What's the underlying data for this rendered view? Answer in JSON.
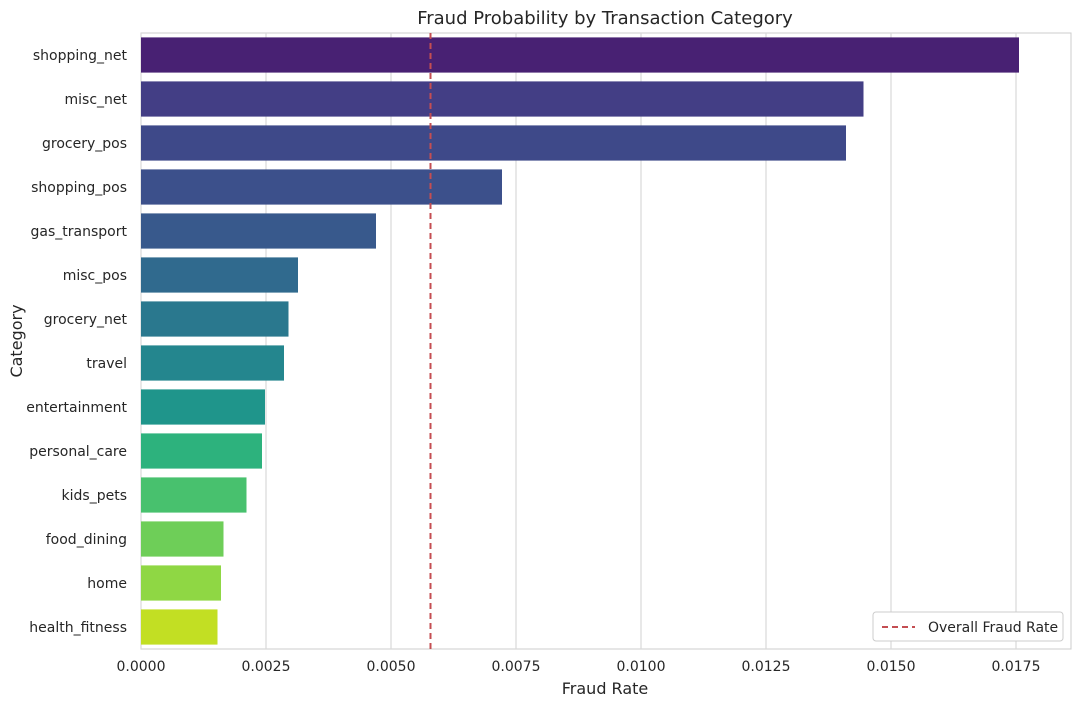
{
  "chart_data": {
    "type": "bar",
    "orientation": "horizontal",
    "title": "Fraud Probability by Transaction Category",
    "xlabel": "Fraud Rate",
    "ylabel": "Category",
    "xlim": [
      0,
      0.0186
    ],
    "xticks": [
      "0.0000",
      "0.0025",
      "0.0050",
      "0.0075",
      "0.0100",
      "0.0125",
      "0.0150",
      "0.0175"
    ],
    "xtick_values": [
      0,
      0.0025,
      0.005,
      0.0075,
      0.01,
      0.0125,
      0.015,
      0.0175
    ],
    "grid": "vertical",
    "categories": [
      "shopping_net",
      "misc_net",
      "grocery_pos",
      "shopping_pos",
      "gas_transport",
      "misc_pos",
      "grocery_net",
      "travel",
      "entertainment",
      "personal_care",
      "kids_pets",
      "food_dining",
      "home",
      "health_fitness"
    ],
    "values": [
      0.01756,
      0.01445,
      0.0141,
      0.00722,
      0.0047,
      0.00314,
      0.00295,
      0.00286,
      0.00248,
      0.00242,
      0.00211,
      0.00165,
      0.0016,
      0.00153
    ],
    "colors": [
      "#482173",
      "#433e85",
      "#3e4989",
      "#3c508b",
      "#38598c",
      "#306a8e",
      "#2a788e",
      "#24868e",
      "#1f958b",
      "#2db27d",
      "#48c16e",
      "#6ece58",
      "#8fd744",
      "#c2df23"
    ],
    "reference_line": {
      "label": "Overall Fraud Rate",
      "value": 0.00579,
      "color": "#c44e52",
      "style": "dashed"
    },
    "legend": {
      "placement": "bottom-right",
      "entries": [
        "Overall Fraud Rate"
      ]
    }
  }
}
